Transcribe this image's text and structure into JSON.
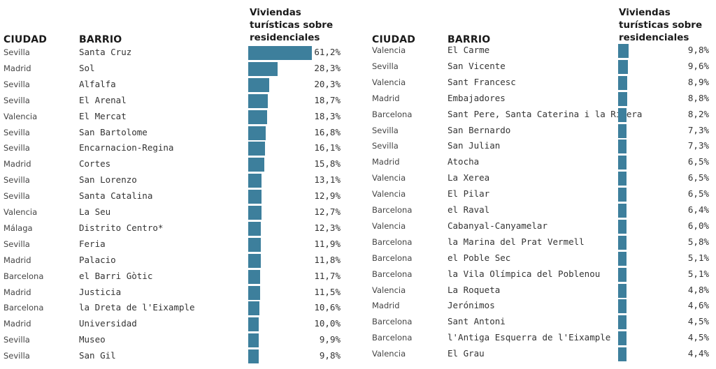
{
  "headers": {
    "city": "CIUDAD",
    "barrio": "BARRIO",
    "metric_line1": "Viviendas",
    "metric_line2": "turísticas sobre",
    "metric_line3": "residenciales"
  },
  "colors": {
    "bar": "#3d7f9c"
  },
  "chart_data": [
    {
      "type": "bar",
      "orientation": "horizontal",
      "ylabel": "Viviendas turísticas sobre residenciales",
      "ylim": [
        0,
        61.2
      ],
      "rows": [
        {
          "city": "Sevilla",
          "barrio": "Santa Cruz",
          "value": 61.2,
          "label": "61,2%"
        },
        {
          "city": "Madrid",
          "barrio": "Sol",
          "value": 28.3,
          "label": "28,3%"
        },
        {
          "city": "Sevilla",
          "barrio": "Alfalfa",
          "value": 20.3,
          "label": "20,3%"
        },
        {
          "city": "Sevilla",
          "barrio": "El Arenal",
          "value": 18.7,
          "label": "18,7%"
        },
        {
          "city": "Valencia",
          "barrio": "El Mercat",
          "value": 18.3,
          "label": "18,3%"
        },
        {
          "city": "Sevilla",
          "barrio": "San Bartolome",
          "value": 16.8,
          "label": "16,8%"
        },
        {
          "city": "Sevilla",
          "barrio": "Encarnacion-Regina",
          "value": 16.1,
          "label": "16,1%"
        },
        {
          "city": "Madrid",
          "barrio": "Cortes",
          "value": 15.8,
          "label": "15,8%"
        },
        {
          "city": "Sevilla",
          "barrio": "San Lorenzo",
          "value": 13.1,
          "label": "13,1%"
        },
        {
          "city": "Sevilla",
          "barrio": "Santa Catalina",
          "value": 12.9,
          "label": "12,9%"
        },
        {
          "city": "Valencia",
          "barrio": "La Seu",
          "value": 12.7,
          "label": "12,7%"
        },
        {
          "city": "Málaga",
          "barrio": "Distrito Centro*",
          "value": 12.3,
          "label": "12,3%"
        },
        {
          "city": "Sevilla",
          "barrio": "Feria",
          "value": 11.9,
          "label": "11,9%"
        },
        {
          "city": "Madrid",
          "barrio": "Palacio",
          "value": 11.8,
          "label": "11,8%"
        },
        {
          "city": "Barcelona",
          "barrio": "el Barri Gòtic",
          "value": 11.7,
          "label": "11,7%"
        },
        {
          "city": "Madrid",
          "barrio": "Justicia",
          "value": 11.5,
          "label": "11,5%"
        },
        {
          "city": "Barcelona",
          "barrio": "la Dreta de l'Eixample",
          "value": 10.6,
          "label": "10,6%"
        },
        {
          "city": "Madrid",
          "barrio": "Universidad",
          "value": 10.0,
          "label": "10,0%"
        },
        {
          "city": "Sevilla",
          "barrio": "Museo",
          "value": 9.9,
          "label": "9,9%"
        },
        {
          "city": "Sevilla",
          "barrio": "San Gil",
          "value": 9.8,
          "label": "9,8%"
        }
      ]
    },
    {
      "type": "bar",
      "orientation": "horizontal",
      "ylabel": "Viviendas turísticas sobre residenciales",
      "ylim": [
        0,
        61.2
      ],
      "rows": [
        {
          "city": "Valencia",
          "barrio": "El Carme",
          "value": 9.8,
          "label": "9,8%"
        },
        {
          "city": "Sevilla",
          "barrio": "San Vicente",
          "value": 9.6,
          "label": "9,6%"
        },
        {
          "city": "Valencia",
          "barrio": "Sant Francesc",
          "value": 8.9,
          "label": "8,9%"
        },
        {
          "city": "Madrid",
          "barrio": "Embajadores",
          "value": 8.8,
          "label": "8,8%"
        },
        {
          "city": "Barcelona",
          "barrio": "Sant Pere, Santa Caterina i la Ribera",
          "value": 8.2,
          "label": "8,2%"
        },
        {
          "city": "Sevilla",
          "barrio": "San Bernardo",
          "value": 7.3,
          "label": "7,3%"
        },
        {
          "city": "Sevilla",
          "barrio": "San Julian",
          "value": 7.3,
          "label": "7,3%"
        },
        {
          "city": "Madrid",
          "barrio": "Atocha",
          "value": 6.5,
          "label": "6,5%"
        },
        {
          "city": "Valencia",
          "barrio": "La Xerea",
          "value": 6.5,
          "label": "6,5%"
        },
        {
          "city": "Valencia",
          "barrio": "El Pilar",
          "value": 6.5,
          "label": "6,5%"
        },
        {
          "city": "Barcelona",
          "barrio": "el Raval",
          "value": 6.4,
          "label": "6,4%"
        },
        {
          "city": "Valencia",
          "barrio": "Cabanyal-Canyamelar",
          "value": 6.0,
          "label": "6,0%"
        },
        {
          "city": "Barcelona",
          "barrio": "la Marina del Prat Vermell",
          "value": 5.8,
          "label": "5,8%"
        },
        {
          "city": "Barcelona",
          "barrio": "el Poble Sec",
          "value": 5.1,
          "label": "5,1%"
        },
        {
          "city": "Barcelona",
          "barrio": "la Vila Olímpica del Poblenou",
          "value": 5.1,
          "label": "5,1%"
        },
        {
          "city": "Valencia",
          "barrio": "La Roqueta",
          "value": 4.8,
          "label": "4,8%"
        },
        {
          "city": "Madrid",
          "barrio": "Jerónimos",
          "value": 4.6,
          "label": "4,6%"
        },
        {
          "city": "Barcelona",
          "barrio": "Sant Antoni",
          "value": 4.5,
          "label": "4,5%"
        },
        {
          "city": "Barcelona",
          "barrio": "l'Antiga Esquerra de l'Eixample",
          "value": 4.5,
          "label": "4,5%"
        },
        {
          "city": "Valencia",
          "barrio": "El Grau",
          "value": 4.4,
          "label": "4,4%"
        }
      ]
    }
  ]
}
